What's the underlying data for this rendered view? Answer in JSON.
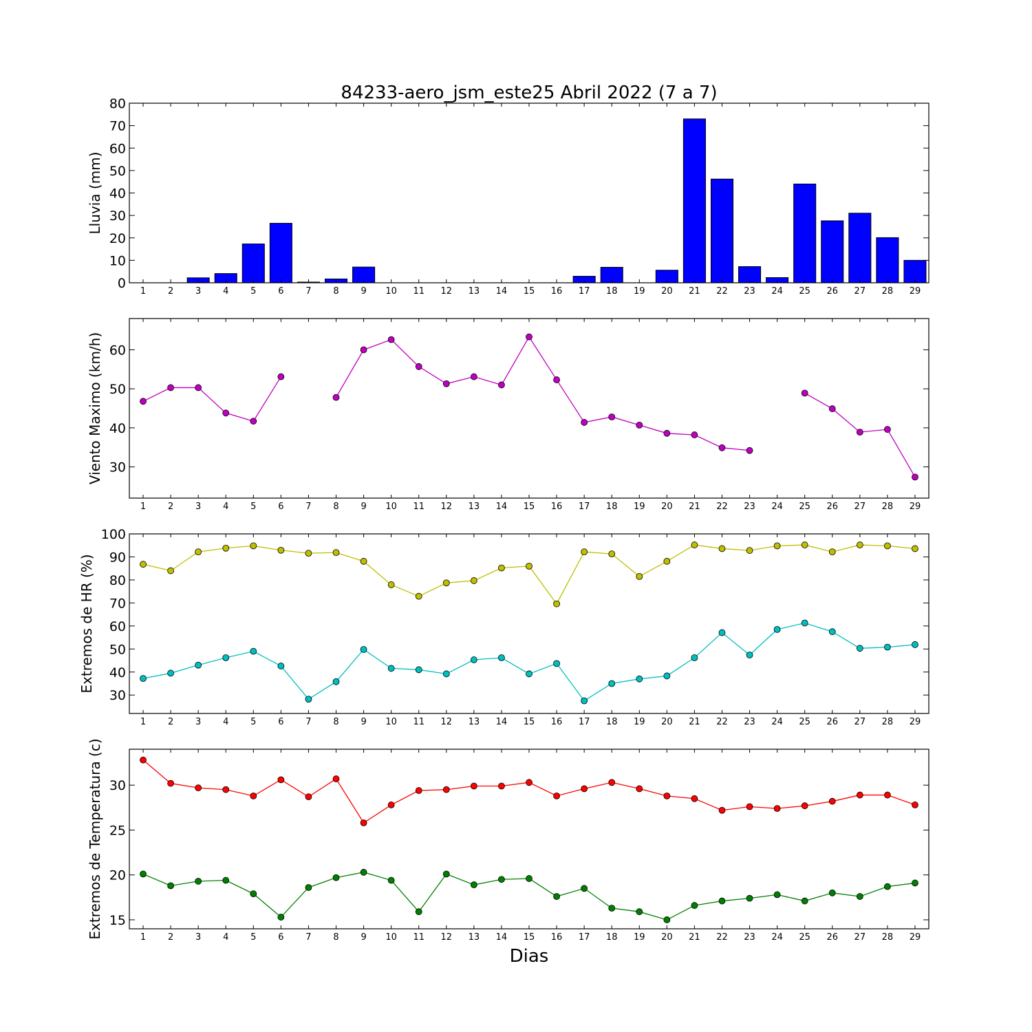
{
  "figure": {
    "title": "84233-aero_jsm_este25 Abril 2022  (7 a 7)",
    "xlabel": "Dias"
  },
  "chart_data": [
    {
      "type": "bar",
      "ylabel": "Lluvia (mm)",
      "ylim": [
        0,
        80
      ],
      "yticks": [
        0,
        10,
        20,
        30,
        40,
        50,
        60,
        70,
        80
      ],
      "xlim": [
        0.5,
        29.5
      ],
      "categories": [
        1,
        2,
        3,
        4,
        5,
        6,
        7,
        8,
        9,
        10,
        11,
        12,
        13,
        14,
        15,
        16,
        17,
        18,
        19,
        20,
        21,
        22,
        23,
        24,
        25,
        26,
        27,
        28,
        29
      ],
      "series": [
        {
          "color": "#0000ff",
          "values": [
            0,
            0,
            2.2,
            4.1,
            17.3,
            26.5,
            0.3,
            1.7,
            7.0,
            0,
            0,
            0,
            0,
            0,
            0,
            0,
            2.9,
            6.9,
            0,
            5.6,
            73.0,
            46.2,
            7.2,
            2.3,
            44.0,
            27.6,
            31.0,
            20.1,
            10.0
          ]
        }
      ],
      "grid": false
    },
    {
      "type": "line",
      "ylabel": "Viento Maximo (km/h)",
      "ylim": [
        22,
        68
      ],
      "yticks": [
        30,
        40,
        50,
        60
      ],
      "xlim": [
        0.5,
        29.5
      ],
      "x": [
        1,
        2,
        3,
        4,
        5,
        6,
        7,
        8,
        9,
        10,
        11,
        12,
        13,
        14,
        15,
        16,
        17,
        18,
        19,
        20,
        21,
        22,
        23,
        24,
        25,
        26,
        27,
        28,
        29
      ],
      "series": [
        {
          "color": "#bf00bf",
          "values": [
            46.8,
            50.3,
            50.3,
            43.8,
            41.7,
            53.1,
            null,
            47.8,
            60.0,
            62.6,
            55.7,
            51.3,
            53.1,
            51.0,
            63.3,
            52.3,
            41.4,
            42.8,
            40.7,
            38.6,
            38.2,
            34.9,
            34.2,
            null,
            48.9,
            44.9,
            38.9,
            39.6,
            27.4
          ]
        }
      ],
      "grid": false
    },
    {
      "type": "line",
      "ylabel": "Extremos de HR (%)",
      "ylim": [
        22,
        100
      ],
      "yticks": [
        30,
        40,
        50,
        60,
        70,
        80,
        90,
        100
      ],
      "xlim": [
        0.5,
        29.5
      ],
      "x": [
        1,
        2,
        3,
        4,
        5,
        6,
        7,
        8,
        9,
        10,
        11,
        12,
        13,
        14,
        15,
        16,
        17,
        18,
        19,
        20,
        21,
        22,
        23,
        24,
        25,
        26,
        27,
        28,
        29
      ],
      "series": [
        {
          "color": "#bfbf00",
          "values": [
            86.8,
            84.0,
            92.2,
            93.8,
            94.8,
            92.9,
            91.6,
            91.9,
            88.1,
            77.9,
            72.9,
            78.7,
            79.7,
            85.2,
            86.0,
            69.6,
            92.2,
            91.3,
            81.5,
            88.1,
            95.2,
            93.6,
            92.8,
            94.8,
            95.2,
            92.2,
            95.2,
            94.8,
            93.6
          ]
        },
        {
          "color": "#00bfbf",
          "values": [
            37.2,
            39.5,
            43.0,
            46.2,
            49.0,
            42.6,
            28.2,
            35.8,
            49.8,
            41.6,
            41.0,
            39.2,
            45.3,
            46.2,
            39.2,
            43.7,
            27.5,
            35.0,
            37.0,
            38.3,
            46.2,
            57.1,
            47.4,
            58.5,
            61.3,
            57.5,
            50.3,
            50.8,
            51.9
          ]
        }
      ],
      "grid": false
    },
    {
      "type": "line",
      "ylabel": "Extremos de Temperatura (c)",
      "ylim": [
        14,
        34
      ],
      "yticks": [
        15,
        20,
        25,
        30
      ],
      "xlim": [
        0.5,
        29.5
      ],
      "x": [
        1,
        2,
        3,
        4,
        5,
        6,
        7,
        8,
        9,
        10,
        11,
        12,
        13,
        14,
        15,
        16,
        17,
        18,
        19,
        20,
        21,
        22,
        23,
        24,
        25,
        26,
        27,
        28,
        29
      ],
      "series": [
        {
          "color": "#ff0000",
          "values": [
            32.8,
            30.2,
            29.7,
            29.5,
            28.8,
            30.6,
            28.7,
            30.7,
            25.8,
            27.8,
            29.4,
            29.5,
            29.9,
            29.9,
            30.3,
            28.8,
            29.6,
            30.3,
            29.6,
            28.8,
            28.5,
            27.2,
            27.6,
            27.4,
            27.7,
            28.2,
            28.9,
            28.9,
            27.8
          ]
        },
        {
          "color": "#008000",
          "values": [
            20.1,
            18.8,
            19.3,
            19.4,
            17.9,
            15.3,
            18.6,
            19.7,
            20.3,
            19.4,
            15.9,
            20.1,
            18.9,
            19.5,
            19.6,
            17.6,
            18.5,
            16.3,
            15.9,
            15.0,
            16.6,
            17.1,
            17.4,
            17.8,
            17.1,
            18.0,
            17.6,
            18.7,
            19.1
          ]
        }
      ],
      "grid": false
    }
  ]
}
